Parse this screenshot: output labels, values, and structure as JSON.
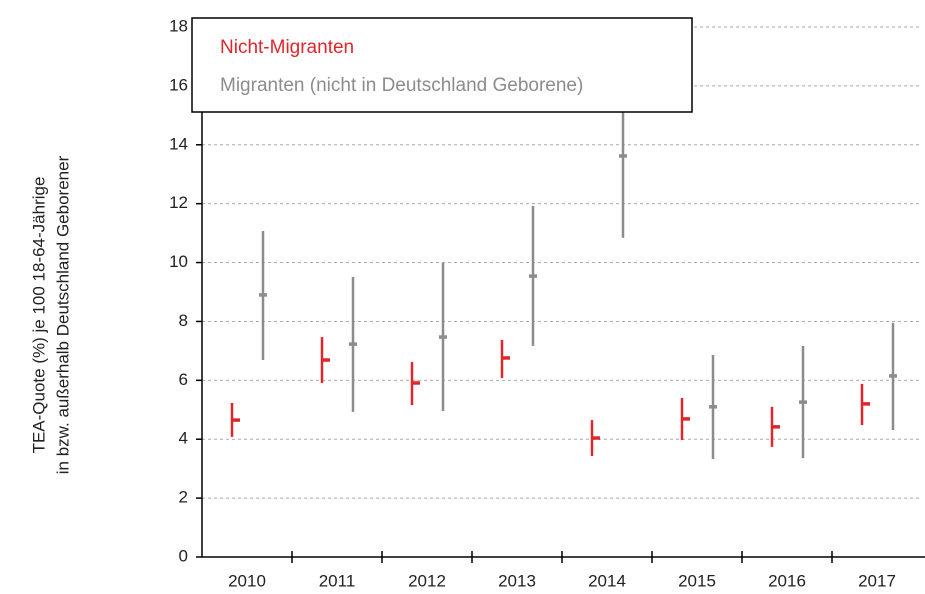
{
  "chart_data": {
    "type": "interval",
    "ylabel": [
      "TEA-Quote (%) je 100 18-64-Jährige",
      "in bzw. außerhalb Deutschland Geborener"
    ],
    "categories": [
      "2010",
      "2011",
      "2012",
      "2013",
      "2014",
      "2015",
      "2016",
      "2017"
    ],
    "series": [
      {
        "name": "Nicht-Migranten",
        "color": "#e0262b",
        "values": [
          4.65,
          6.69,
          5.91,
          6.76,
          4.04,
          4.69,
          4.42,
          5.2
        ],
        "low": [
          4.08,
          5.91,
          5.16,
          6.08,
          3.43,
          3.97,
          3.74,
          4.48
        ],
        "high": [
          5.23,
          7.47,
          6.62,
          7.37,
          4.65,
          5.4,
          5.1,
          5.88
        ]
      },
      {
        "name": "Migranten (nicht in Deutschland Geborene)",
        "color": "#8c8c8c",
        "values": [
          8.9,
          7.23,
          7.47,
          9.54,
          13.62,
          5.1,
          5.26,
          6.15
        ],
        "low": [
          6.69,
          4.93,
          4.96,
          7.17,
          10.84,
          3.33,
          3.36,
          4.31
        ],
        "high": [
          11.07,
          9.51,
          9.99,
          11.92,
          15.2,
          6.86,
          7.17,
          7.95
        ]
      }
    ],
    "ylim": [
      0,
      18
    ],
    "yticks": [
      0,
      2,
      4,
      6,
      8,
      10,
      12,
      14,
      16,
      18
    ],
    "grid": true
  }
}
